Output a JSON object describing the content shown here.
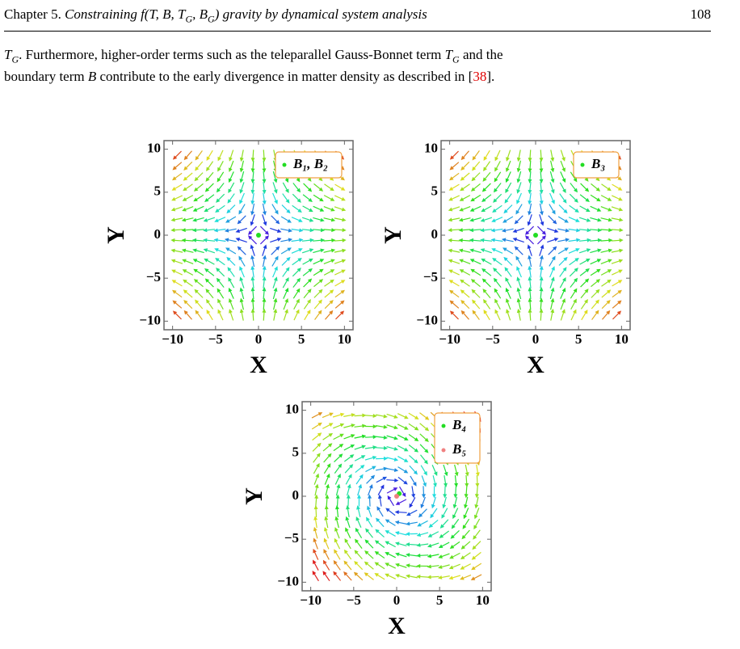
{
  "header": {
    "title": [
      {
        "text": "Chapter 5. ",
        "style": "normal"
      },
      {
        "text": "Constraining f(T, B, T",
        "style": "italic"
      },
      {
        "text": "G",
        "style": "sub"
      },
      {
        "text": ", B",
        "style": "italic"
      },
      {
        "text": "G",
        "style": "sub"
      },
      {
        "text": ") gravity by dynamical system analysis",
        "style": "italic"
      }
    ],
    "page_number": "108"
  },
  "body": {
    "lines": [
      [
        {
          "text": "T",
          "style": "italic"
        },
        {
          "text": "G",
          "style": "sub"
        },
        {
          "text": ". Furthermore, higher-order terms such as the teleparallel Gauss-Bonnet term ",
          "style": "normal"
        },
        {
          "text": "T",
          "style": "italic"
        },
        {
          "text": "G",
          "style": "sub"
        },
        {
          "text": " and the",
          "style": "normal"
        }
      ],
      [
        {
          "text": "boundary term ",
          "style": "normal"
        },
        {
          "text": "B",
          "style": "italic"
        },
        {
          "text": " contribute to the early divergence in matter density as described in [",
          "style": "normal"
        },
        {
          "text": "38",
          "style": "link"
        },
        {
          "text": "].",
          "style": "normal"
        }
      ]
    ]
  },
  "chart_data": [
    {
      "type": "streamplot",
      "xlabel": "X",
      "ylabel": "Y",
      "xlim": [
        -11,
        11
      ],
      "ylim": [
        -11,
        11
      ],
      "xticks": [
        {
          "value": -10,
          "label": "−10"
        },
        {
          "value": -5,
          "label": "−5"
        },
        0,
        5,
        10
      ],
      "yticks": [
        {
          "value": -10,
          "label": "−10"
        },
        {
          "value": -5,
          "label": "−5"
        },
        0,
        5,
        10
      ],
      "points": [
        {
          "name": "B₁, B₂",
          "x": 0,
          "y": 0,
          "color": "#22dd22"
        }
      ]
    },
    {
      "type": "streamplot",
      "xlabel": "X",
      "ylabel": "Y",
      "xlim": [
        -11,
        11
      ],
      "ylim": [
        -11,
        11
      ],
      "xticks": [
        {
          "value": -10,
          "label": "−10"
        },
        {
          "value": -5,
          "label": "−5"
        },
        0,
        5,
        10
      ],
      "yticks": [
        {
          "value": -10,
          "label": "−10"
        },
        {
          "value": -5,
          "label": "−5"
        },
        0,
        5,
        10
      ],
      "points": [
        {
          "name": "B₃",
          "x": 0,
          "y": 0,
          "color": "#22dd22"
        }
      ]
    },
    {
      "type": "streamplot",
      "xlabel": "X",
      "ylabel": "Y",
      "xlim": [
        -11,
        11
      ],
      "ylim": [
        -11,
        11
      ],
      "xticks": [
        {
          "value": -10,
          "label": "−10"
        },
        {
          "value": -5,
          "label": "−5"
        },
        0,
        5,
        10
      ],
      "yticks": [
        {
          "value": -10,
          "label": "−10"
        },
        {
          "value": -5,
          "label": "−5"
        },
        0,
        5,
        10
      ],
      "points": [
        {
          "name": "B₄",
          "x": 0.3,
          "y": 0.3,
          "color": "#22dd22"
        },
        {
          "name": "B₅",
          "x": 0,
          "y": 0,
          "color": "#f08080"
        }
      ]
    }
  ]
}
